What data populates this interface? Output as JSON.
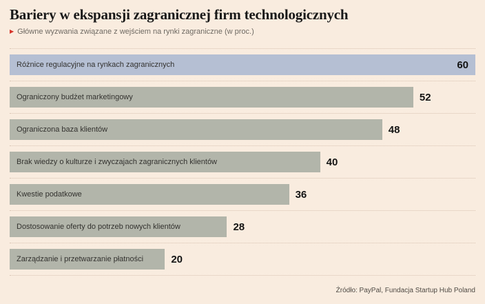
{
  "header": {
    "title": "Bariery w ekspansji zagranicznej firm technologicznych",
    "subtitle": "Główne wyzwania związane z wejściem na rynki zagraniczne (w proc.)"
  },
  "chart_data": {
    "type": "bar",
    "orientation": "horizontal",
    "title": "Bariery w ekspansji zagranicznej firm technologicznych",
    "subtitle": "Główne wyzwania związane z wejściem na rynki zagraniczne (w proc.)",
    "unit": "proc.",
    "categories": [
      "Różnice regulacyjne na rynkach zagranicznych",
      "Ograniczony budżet marketingowy",
      "Ograniczona baza klientów",
      "Brak wiedzy o kulturze i zwyczajach zagranicznych klientów",
      "Kwestie podatkowe",
      "Dostosowanie oferty do potrzeb nowych klientów",
      "Zarządzanie i przetwarzanie płatności"
    ],
    "values": [
      60,
      52,
      48,
      40,
      36,
      28,
      20
    ],
    "xlim": [
      0,
      60
    ],
    "value_labels": "at end of each bar",
    "grid": "dotted row separators",
    "highlight_index": 0,
    "highlight_color": "#b5bfd3",
    "bar_color": "#b2b5aa"
  },
  "footer": {
    "source": "Źródło: PayPal, Fundacja Startup Hub Poland"
  },
  "colors": {
    "background": "#f9ecdf",
    "separator": "#d9c3b2",
    "accent_red": "#d6352b",
    "text_dark": "#191919",
    "text_muted": "#6f6a63"
  }
}
